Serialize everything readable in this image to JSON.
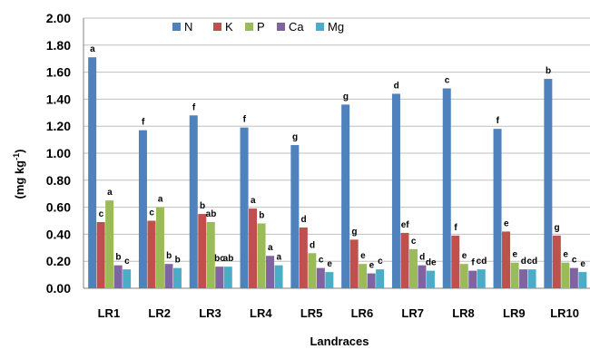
{
  "chart_data": {
    "type": "bar",
    "categories": [
      "LR1",
      "LR2",
      "LR3",
      "LR4",
      "LR5",
      "LR6",
      "LR7",
      "LR8",
      "LR9",
      "LR10"
    ],
    "xlabel": "Landraces",
    "ylabel_main": "(mg kg",
    "ylabel_sup": "-1",
    "ylabel_close": ")",
    "ylim": [
      0,
      2.0
    ],
    "yticks": [
      "0.00",
      "0.20",
      "0.40",
      "0.60",
      "0.80",
      "1.00",
      "1.20",
      "1.40",
      "1.60",
      "1.80",
      "2.00"
    ],
    "legend_position": "top-center",
    "series": [
      {
        "name": "N",
        "color": "#4F81BD",
        "values": [
          1.71,
          1.17,
          1.28,
          1.19,
          1.06,
          1.36,
          1.44,
          1.48,
          1.18,
          1.55
        ],
        "labels": [
          "a",
          "f",
          "f",
          "f",
          "g",
          "g",
          "d",
          "c",
          "f",
          "b"
        ]
      },
      {
        "name": "K",
        "color": "#C0504D",
        "values": [
          0.49,
          0.5,
          0.55,
          0.59,
          0.45,
          0.36,
          0.41,
          0.39,
          0.42,
          0.39
        ],
        "labels": [
          "c",
          "c",
          "b",
          "a",
          "d",
          "g",
          "ef",
          "f",
          "e",
          "g"
        ]
      },
      {
        "name": "P",
        "color": "#9BBB59",
        "values": [
          0.65,
          0.6,
          0.49,
          0.48,
          0.26,
          0.18,
          0.29,
          0.18,
          0.19,
          0.19
        ],
        "labels": [
          "a",
          "a",
          "ab",
          "b",
          "d",
          "e",
          "c",
          "e",
          "e",
          "e"
        ]
      },
      {
        "name": "Ca",
        "color": "#8064A2",
        "values": [
          0.17,
          0.18,
          0.16,
          0.24,
          0.15,
          0.11,
          0.17,
          0.13,
          0.14,
          0.15
        ],
        "labels": [
          "b",
          "b",
          "bc",
          "a",
          "c",
          "e",
          "d",
          "f",
          "d",
          "c"
        ]
      },
      {
        "name": "Mg",
        "color": "#4BACC6",
        "values": [
          0.14,
          0.15,
          0.16,
          0.17,
          0.12,
          0.14,
          0.13,
          0.14,
          0.14,
          0.12
        ],
        "labels": [
          "c",
          "b",
          "ab",
          "a",
          "e",
          "c",
          "de",
          "cd",
          "cd",
          "e"
        ]
      }
    ]
  }
}
